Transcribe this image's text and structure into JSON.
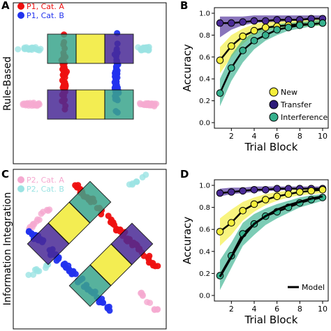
{
  "figure": {
    "panels": {
      "A": {
        "letter": "A",
        "row_label": "Rule-Based"
      },
      "B": {
        "letter": "B"
      },
      "C": {
        "letter": "C",
        "row_label": "Information Integration"
      },
      "D": {
        "letter": "D"
      }
    },
    "legend_A": [
      {
        "label": "P1, Cat. A",
        "color": "#ee1111"
      },
      {
        "label": "P1, Cat. B",
        "color": "#2233ee"
      }
    ],
    "legend_C": [
      {
        "label": "P2, Cat. A",
        "color": "#f5a9d0"
      },
      {
        "label": "P2, Cat. B",
        "color": "#9be3e3"
      }
    ],
    "legend_B": [
      {
        "label": "New",
        "color": "#f5ee3a"
      },
      {
        "label": "Transfer",
        "color": "#2e1c7a"
      },
      {
        "label": "Interference",
        "color": "#36b08d"
      }
    ],
    "legend_D": [
      {
        "label": "Model",
        "color": "#000000"
      }
    ],
    "colors": {
      "yellow": "#f5ee3a",
      "purple": "#4a2a96",
      "teal": "#36b08d",
      "red": "#ee1111",
      "blue": "#2233ee",
      "pink": "#f5a9d0",
      "cyan": "#9be3e3"
    }
  },
  "chart_data": [
    {
      "panel": "B",
      "type": "line",
      "xlabel": "Trial Block",
      "ylabel": "Accuracy",
      "xlim": [
        1,
        10
      ],
      "ylim": [
        0.0,
        1.0
      ],
      "x_ticks": [
        2,
        4,
        6,
        8,
        10
      ],
      "y_ticks": [
        "0.0",
        "0.2",
        "0.4",
        "0.6",
        "0.8",
        "1.0"
      ],
      "legend_position": "bottom-right",
      "x": [
        1,
        2,
        3,
        4,
        5,
        6,
        7,
        8,
        9,
        10
      ],
      "series": [
        {
          "name": "New",
          "values": [
            0.57,
            0.7,
            0.79,
            0.84,
            0.87,
            0.88,
            0.89,
            0.9,
            0.9,
            0.91
          ],
          "band_lo": [
            0.45,
            0.6,
            0.72,
            0.8,
            0.84,
            0.86,
            0.87,
            0.88,
            0.88,
            0.89
          ],
          "band_hi": [
            0.69,
            0.8,
            0.86,
            0.9,
            0.92,
            0.93,
            0.94,
            0.94,
            0.95,
            0.95
          ]
        },
        {
          "name": "Transfer",
          "values": [
            0.91,
            0.91,
            0.92,
            0.93,
            0.93,
            0.94,
            0.94,
            0.94,
            0.95,
            0.95
          ],
          "band_lo": [
            0.78,
            0.85,
            0.89,
            0.91,
            0.92,
            0.92,
            0.93,
            0.93,
            0.94,
            0.94
          ],
          "band_hi": [
            0.97,
            0.97,
            0.97,
            0.98,
            0.98,
            0.98,
            0.98,
            0.98,
            0.98,
            0.98
          ]
        },
        {
          "name": "Interference",
          "values": [
            0.27,
            0.5,
            0.66,
            0.75,
            0.8,
            0.85,
            0.87,
            0.89,
            0.9,
            0.91
          ],
          "band_lo": [
            0.15,
            0.38,
            0.55,
            0.67,
            0.75,
            0.8,
            0.84,
            0.86,
            0.88,
            0.89
          ],
          "band_hi": [
            0.4,
            0.62,
            0.76,
            0.83,
            0.87,
            0.9,
            0.91,
            0.92,
            0.93,
            0.94
          ]
        }
      ]
    },
    {
      "panel": "D",
      "type": "line",
      "xlabel": "Trial Block",
      "ylabel": "Accuracy",
      "xlim": [
        1,
        10
      ],
      "ylim": [
        0.0,
        1.0
      ],
      "x_ticks": [
        2,
        4,
        6,
        8,
        10
      ],
      "y_ticks": [
        "0.0",
        "0.2",
        "0.4",
        "0.6",
        "0.8",
        "1.0"
      ],
      "legend_position": "bottom-right",
      "x": [
        1,
        2,
        3,
        4,
        5,
        6,
        7,
        8,
        9,
        10
      ],
      "series": [
        {
          "name": "New",
          "values": [
            0.58,
            0.66,
            0.77,
            0.83,
            0.87,
            0.9,
            0.92,
            0.94,
            0.95,
            0.96
          ],
          "band_lo": [
            0.45,
            0.55,
            0.68,
            0.76,
            0.82,
            0.86,
            0.89,
            0.91,
            0.92,
            0.93
          ],
          "band_hi": [
            0.7,
            0.78,
            0.85,
            0.89,
            0.92,
            0.94,
            0.95,
            0.97,
            0.97,
            0.98
          ]
        },
        {
          "name": "Transfer",
          "values": [
            0.93,
            0.94,
            0.95,
            0.96,
            0.96,
            0.97,
            0.97,
            0.97,
            0.97,
            0.97
          ],
          "band_lo": [
            0.9,
            0.92,
            0.93,
            0.94,
            0.95,
            0.95,
            0.96,
            0.96,
            0.96,
            0.96
          ],
          "band_hi": [
            0.97,
            0.98,
            0.98,
            0.99,
            0.99,
            0.99,
            0.99,
            0.99,
            0.99,
            0.99
          ]
        },
        {
          "name": "Interference",
          "values": [
            0.18,
            0.36,
            0.56,
            0.65,
            0.72,
            0.76,
            0.8,
            0.84,
            0.87,
            0.89
          ],
          "band_lo": [
            0.05,
            0.25,
            0.45,
            0.55,
            0.64,
            0.7,
            0.75,
            0.8,
            0.83,
            0.86
          ],
          "band_hi": [
            0.32,
            0.48,
            0.66,
            0.74,
            0.79,
            0.83,
            0.86,
            0.89,
            0.91,
            0.92
          ]
        },
        {
          "name": "Model",
          "values": [
            0.17,
            0.35,
            0.53,
            0.65,
            0.72,
            0.78,
            0.82,
            0.85,
            0.88,
            0.9
          ]
        }
      ]
    }
  ]
}
